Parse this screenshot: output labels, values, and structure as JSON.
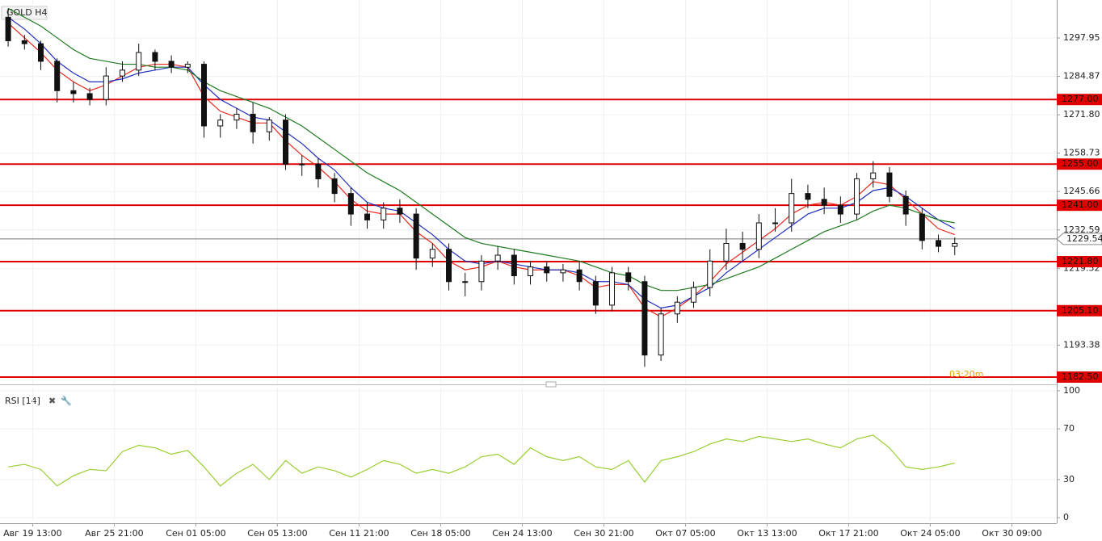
{
  "chart_data": [
    {
      "type": "candlestick",
      "title": "GOLD H4",
      "open": [
        1305,
        1297,
        1296,
        1290,
        1280,
        1279,
        1277,
        1285,
        1287,
        1293,
        1290,
        1288,
        1289,
        1268,
        1270,
        1272,
        1266,
        1270,
        1255,
        1255,
        1250,
        1245,
        1238,
        1236,
        1240,
        1238,
        1223,
        1226,
        1215,
        1215,
        1222,
        1224,
        1217,
        1220,
        1218,
        1219,
        1215,
        1207,
        1218,
        1215,
        1190,
        1204,
        1208,
        1213,
        1222,
        1228,
        1226,
        1235,
        1235,
        1245,
        1243,
        1241,
        1238,
        1250,
        1252,
        1244,
        1238,
        1229,
        1227
      ],
      "high": [
        1308,
        1299,
        1297,
        1291,
        1283,
        1281,
        1288,
        1290,
        1296,
        1294,
        1292,
        1290,
        1290,
        1272,
        1274,
        1276,
        1271,
        1272,
        1258,
        1257,
        1252,
        1247,
        1242,
        1242,
        1243,
        1240,
        1228,
        1228,
        1218,
        1224,
        1227,
        1226,
        1222,
        1222,
        1221,
        1222,
        1217,
        1220,
        1220,
        1217,
        1206,
        1210,
        1215,
        1226,
        1233,
        1232,
        1238,
        1240,
        1250,
        1248,
        1247,
        1244,
        1252,
        1256,
        1254,
        1246,
        1240,
        1231,
        1230
      ],
      "low": [
        1295,
        1294,
        1287,
        1276,
        1276,
        1275,
        1275,
        1283,
        1285,
        1287,
        1286,
        1286,
        1264,
        1264,
        1267,
        1262,
        1263,
        1253,
        1251,
        1247,
        1242,
        1234,
        1233,
        1233,
        1235,
        1219,
        1220,
        1212,
        1210,
        1212,
        1219,
        1214,
        1214,
        1215,
        1215,
        1212,
        1204,
        1205,
        1212,
        1186,
        1188,
        1201,
        1206,
        1210,
        1219,
        1222,
        1223,
        1232,
        1232,
        1240,
        1238,
        1235,
        1236,
        1247,
        1242,
        1234,
        1226,
        1225,
        1224
      ],
      "close": [
        1297,
        1296,
        1290,
        1280,
        1279,
        1277,
        1285,
        1287,
        1293,
        1290,
        1288,
        1289,
        1268,
        1270,
        1272,
        1266,
        1270,
        1255,
        1255,
        1250,
        1245,
        1238,
        1236,
        1240,
        1238,
        1223,
        1226,
        1215,
        1215,
        1222,
        1224,
        1217,
        1220,
        1218,
        1219,
        1215,
        1207,
        1218,
        1215,
        1190,
        1204,
        1208,
        1213,
        1222,
        1228,
        1226,
        1235,
        1235,
        1245,
        1243,
        1241,
        1238,
        1250,
        1252,
        1244,
        1238,
        1229,
        1227,
        1228
      ],
      "series": [
        {
          "color": "#e8281e",
          "values": [
            1303,
            1298,
            1293,
            1287,
            1283,
            1280,
            1282,
            1285,
            1288,
            1289,
            1289,
            1288,
            1278,
            1273,
            1271,
            1269,
            1269,
            1263,
            1258,
            1254,
            1249,
            1243,
            1239,
            1238,
            1238,
            1232,
            1228,
            1222,
            1219,
            1220,
            1222,
            1220,
            1219,
            1219,
            1219,
            1217,
            1213,
            1214,
            1214,
            1206,
            1203,
            1206,
            1210,
            1215,
            1221,
            1225,
            1229,
            1233,
            1238,
            1241,
            1242,
            1241,
            1244,
            1249,
            1248,
            1243,
            1238,
            1233,
            1231
          ]
        },
        {
          "color": "#1f2fbf",
          "values": [
            1305,
            1301,
            1296,
            1290,
            1286,
            1283,
            1283,
            1284,
            1286,
            1287,
            1288,
            1288,
            1282,
            1277,
            1274,
            1271,
            1270,
            1266,
            1262,
            1257,
            1253,
            1247,
            1242,
            1240,
            1239,
            1235,
            1231,
            1226,
            1222,
            1221,
            1222,
            1221,
            1220,
            1219,
            1219,
            1218,
            1215,
            1215,
            1214,
            1209,
            1206,
            1207,
            1210,
            1213,
            1218,
            1222,
            1226,
            1230,
            1234,
            1238,
            1240,
            1240,
            1242,
            1246,
            1247,
            1244,
            1240,
            1236,
            1233
          ]
        },
        {
          "color": "#1e7a1e",
          "values": [
            1308,
            1305,
            1302,
            1298,
            1294,
            1291,
            1290,
            1289,
            1289,
            1288,
            1288,
            1287,
            1283,
            1280,
            1278,
            1276,
            1274,
            1271,
            1268,
            1264,
            1260,
            1256,
            1252,
            1249,
            1246,
            1242,
            1238,
            1234,
            1230,
            1228,
            1227,
            1226,
            1225,
            1224,
            1223,
            1222,
            1220,
            1218,
            1217,
            1214,
            1212,
            1212,
            1213,
            1214,
            1216,
            1218,
            1220,
            1223,
            1226,
            1229,
            1232,
            1234,
            1236,
            1239,
            1241,
            1240,
            1238,
            1236,
            1235
          ]
        }
      ],
      "ylim": [
        1180.3,
        1310.87
      ],
      "yticks": [
        1297.95,
        1284.87,
        {
          "value": 1271.8,
          "label": "1271.80"
        },
        1258.73,
        1245.66,
        1232.59,
        1219.52,
        1193.38
      ],
      "xlim": [
        0,
        64.75
      ],
      "xticks": [
        {
          "value": 2,
          "label": "Авг 19 13:00"
        },
        {
          "value": 7,
          "label": "Авг 25 21:00"
        },
        {
          "value": 12,
          "label": "Сен 01 05:00"
        },
        {
          "value": 17,
          "label": "Сен 05 13:00"
        },
        {
          "value": 22,
          "label": "Сен 11 21:00"
        },
        {
          "value": 27,
          "label": "Сен 18 05:00"
        },
        {
          "value": 32,
          "label": "Сен 24 13:00"
        },
        {
          "value": 37,
          "label": "Сен 30 21:00"
        },
        {
          "value": 42,
          "label": "Окт 07 05:00"
        },
        {
          "value": 47,
          "label": "Окт 13 13:00"
        },
        {
          "value": 52,
          "label": "Окт 17 21:00"
        },
        {
          "value": 57,
          "label": "Окт 24 05:00"
        },
        {
          "value": 62,
          "label": "Окт 30 09:00"
        }
      ],
      "levels": [
        {
          "value": 1277,
          "label": "1277.00"
        },
        {
          "value": 1255,
          "label": "1255.00"
        },
        {
          "value": 1241,
          "label": "1241.00"
        },
        {
          "value": 1221.8,
          "label": "1221.80"
        },
        {
          "value": 1205.1,
          "label": "1205.10"
        },
        {
          "value": 1182.5,
          "label": "1182.50"
        }
      ],
      "level_color": "#e00000",
      "last_price": 1229.54,
      "timer": "03:20m",
      "grid": true
    },
    {
      "type": "line",
      "title": "RSI [14]",
      "series": [
        {
          "color": "#9acd32",
          "values": [
            40,
            42,
            38,
            25,
            33,
            38,
            37,
            52,
            57,
            55,
            50,
            53,
            40,
            25,
            35,
            42,
            30,
            45,
            35,
            40,
            37,
            32,
            38,
            45,
            42,
            35,
            38,
            35,
            40,
            48,
            50,
            42,
            55,
            48,
            45,
            48,
            40,
            38,
            45,
            28,
            45,
            48,
            52,
            58,
            62,
            60,
            64,
            62,
            60,
            62,
            58,
            55,
            62,
            65,
            55,
            40,
            38,
            40,
            43
          ]
        }
      ],
      "ylim": [
        -2.5,
        102.5
      ],
      "yticks": [
        100,
        70,
        30,
        0
      ],
      "grid": true
    }
  ]
}
